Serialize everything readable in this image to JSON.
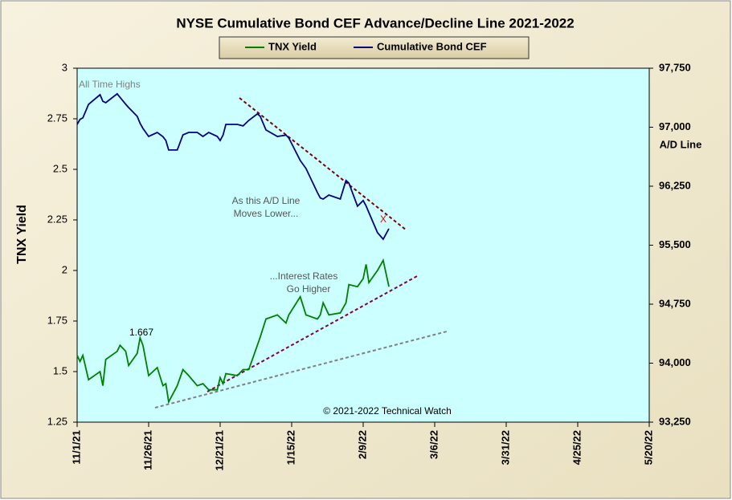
{
  "chart_data": {
    "type": "line",
    "title": "NYSE Cumulative  Bond CEF Advance/Decline  Line 2021-2022",
    "y_label": "TNX Yield",
    "y2_label": "A/D Line",
    "x": [
      "11/1/21",
      "11/2/21",
      "11/3/21",
      "11/5/21",
      "11/9/21",
      "11/10/21",
      "11/11/21",
      "11/15/21",
      "11/16/21",
      "11/18/21",
      "11/19/21",
      "11/22/21",
      "11/23/21",
      "11/24/21",
      "11/26/21",
      "11/29/21",
      "12/1/21",
      "12/2/21",
      "12/3/21",
      "12/6/21",
      "12/8/21",
      "12/10/21",
      "12/13/21",
      "12/15/21",
      "12/17/21",
      "12/20/21",
      "12/21/21",
      "12/22/21",
      "12/23/21",
      "12/27/21",
      "12/29/21",
      "12/31/21",
      "1/3/22",
      "1/4/22",
      "1/6/22",
      "1/10/22",
      "1/13/22",
      "1/14/22",
      "1/18/22",
      "1/20/22",
      "1/24/22",
      "1/25/22",
      "1/26/22",
      "1/28/22",
      "2/1/22",
      "2/3/22",
      "2/4/22",
      "2/7/22",
      "2/9/22",
      "2/10/22",
      "2/11/22",
      "2/14/22",
      "2/16/22",
      "2/18/22"
    ],
    "series": [
      {
        "name": "TNX Yield",
        "color": "#008000",
        "values": [
          1.58,
          1.55,
          1.58,
          1.46,
          1.5,
          1.43,
          1.56,
          1.6,
          1.63,
          1.6,
          1.53,
          1.59,
          1.667,
          1.63,
          1.48,
          1.52,
          1.43,
          1.44,
          1.35,
          1.43,
          1.51,
          1.48,
          1.43,
          1.44,
          1.41,
          1.41,
          1.47,
          1.44,
          1.49,
          1.48,
          1.51,
          1.51,
          1.63,
          1.67,
          1.76,
          1.78,
          1.74,
          1.78,
          1.87,
          1.78,
          1.76,
          1.78,
          1.84,
          1.78,
          1.79,
          1.84,
          1.93,
          1.92,
          1.96,
          2.03,
          1.94,
          2.0,
          2.05,
          1.92
        ]
      },
      {
        "name": "Cumulative Bond CEF",
        "color": "#000080",
        "axis": "y2",
        "values": [
          97036,
          97100,
          97118,
          97291,
          97413,
          97330,
          97311,
          97424,
          97380,
          97291,
          97250,
          97138,
          97050,
          96985,
          96883,
          96934,
          96880,
          96832,
          96710,
          96710,
          96903,
          96934,
          96934,
          96883,
          96934,
          96883,
          96832,
          96900,
          97036,
          97036,
          97016,
          97087,
          97169,
          97140,
          96965,
          96883,
          96900,
          96863,
          96577,
          96475,
          96169,
          96100,
          96087,
          96138,
          96087,
          96322,
          96290,
          95996,
          96067,
          96000,
          95914,
          95659,
          95577,
          95710
        ]
      }
    ],
    "xlim": [
      "11/1/21",
      "5/20/22"
    ],
    "xticks": [
      "11/1/21",
      "11/26/21",
      "12/21/21",
      "1/15/22",
      "2/9/22",
      "3/6/22",
      "3/31/22",
      "4/25/22",
      "5/20/22"
    ],
    "ylim": [
      1.25,
      3
    ],
    "yticks": [
      1.25,
      1.5,
      1.75,
      2,
      2.25,
      2.5,
      2.75,
      3
    ],
    "y2lim": [
      93250,
      97750
    ],
    "y2ticks": [
      {
        "value": 93250,
        "label": "93,250"
      },
      {
        "value": 94000,
        "label": "94,000"
      },
      {
        "value": 94750,
        "label": "94,750"
      },
      {
        "value": 95500,
        "label": "95,500"
      },
      {
        "value": 96250,
        "label": "96,250"
      },
      {
        "value": 97000,
        "label": "97,000"
      },
      {
        "value": 97750,
        "label": "97,750"
      }
    ],
    "annotations": [
      "All Time Highs",
      "As this A/D Line",
      "Moves Lower...",
      "...Interest Rates",
      "Go Higher",
      "1.667",
      "X",
      "© 2021-2022  Technical Watch"
    ]
  }
}
